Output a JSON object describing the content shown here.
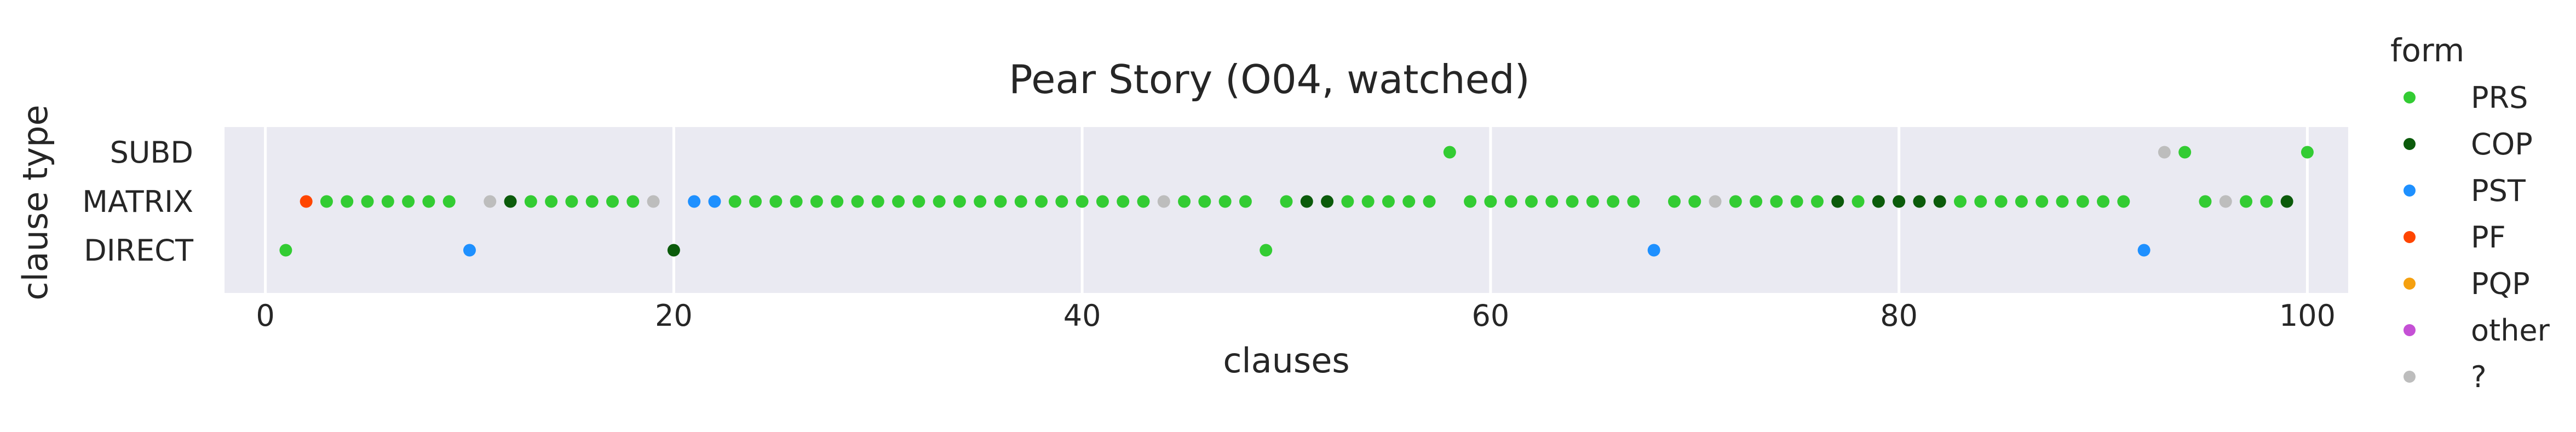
{
  "chart_data": {
    "type": "scatter",
    "title": "Pear Story (O04, watched)",
    "xlabel": "clauses",
    "ylabel": "clause type",
    "xlim": [
      -2,
      102
    ],
    "xticks": [
      0,
      20,
      40,
      60,
      80,
      100
    ],
    "xtick_labels": [
      "0",
      "20",
      "40",
      "60",
      "80",
      "100"
    ],
    "categories": [
      "SUBD",
      "MATRIX",
      "DIRECT"
    ],
    "grid": true,
    "legend": {
      "title": "form",
      "placement": "right",
      "entries": [
        {
          "label": "PRS",
          "color": "#33cc33"
        },
        {
          "label": "COP",
          "color": "#0b5b0b"
        },
        {
          "label": "PST",
          "color": "#1e90ff"
        },
        {
          "label": "PF",
          "color": "#ff4500"
        },
        {
          "label": "PQP",
          "color": "#f5a00f"
        },
        {
          "label": "other",
          "color": "#c550d5"
        },
        {
          "label": "?",
          "color": "#bdbdbd"
        }
      ]
    },
    "series": [
      {
        "name": "PRS",
        "points": [
          {
            "x": 1,
            "y": "DIRECT"
          },
          {
            "x": 3,
            "y": "MATRIX"
          },
          {
            "x": 4,
            "y": "MATRIX"
          },
          {
            "x": 5,
            "y": "MATRIX"
          },
          {
            "x": 6,
            "y": "MATRIX"
          },
          {
            "x": 7,
            "y": "MATRIX"
          },
          {
            "x": 8,
            "y": "MATRIX"
          },
          {
            "x": 9,
            "y": "MATRIX"
          },
          {
            "x": 13,
            "y": "MATRIX"
          },
          {
            "x": 14,
            "y": "MATRIX"
          },
          {
            "x": 15,
            "y": "MATRIX"
          },
          {
            "x": 16,
            "y": "MATRIX"
          },
          {
            "x": 17,
            "y": "MATRIX"
          },
          {
            "x": 18,
            "y": "MATRIX"
          },
          {
            "x": 23,
            "y": "MATRIX"
          },
          {
            "x": 24,
            "y": "MATRIX"
          },
          {
            "x": 25,
            "y": "MATRIX"
          },
          {
            "x": 26,
            "y": "MATRIX"
          },
          {
            "x": 27,
            "y": "MATRIX"
          },
          {
            "x": 28,
            "y": "MATRIX"
          },
          {
            "x": 29,
            "y": "MATRIX"
          },
          {
            "x": 30,
            "y": "MATRIX"
          },
          {
            "x": 31,
            "y": "MATRIX"
          },
          {
            "x": 32,
            "y": "MATRIX"
          },
          {
            "x": 33,
            "y": "MATRIX"
          },
          {
            "x": 34,
            "y": "MATRIX"
          },
          {
            "x": 35,
            "y": "MATRIX"
          },
          {
            "x": 36,
            "y": "MATRIX"
          },
          {
            "x": 37,
            "y": "MATRIX"
          },
          {
            "x": 38,
            "y": "MATRIX"
          },
          {
            "x": 39,
            "y": "MATRIX"
          },
          {
            "x": 40,
            "y": "MATRIX"
          },
          {
            "x": 41,
            "y": "MATRIX"
          },
          {
            "x": 42,
            "y": "MATRIX"
          },
          {
            "x": 43,
            "y": "MATRIX"
          },
          {
            "x": 45,
            "y": "MATRIX"
          },
          {
            "x": 46,
            "y": "MATRIX"
          },
          {
            "x": 47,
            "y": "MATRIX"
          },
          {
            "x": 48,
            "y": "MATRIX"
          },
          {
            "x": 49,
            "y": "DIRECT"
          },
          {
            "x": 50,
            "y": "MATRIX"
          },
          {
            "x": 53,
            "y": "MATRIX"
          },
          {
            "x": 54,
            "y": "MATRIX"
          },
          {
            "x": 55,
            "y": "MATRIX"
          },
          {
            "x": 56,
            "y": "MATRIX"
          },
          {
            "x": 57,
            "y": "MATRIX"
          },
          {
            "x": 58,
            "y": "SUBD"
          },
          {
            "x": 59,
            "y": "MATRIX"
          },
          {
            "x": 60,
            "y": "MATRIX"
          },
          {
            "x": 61,
            "y": "MATRIX"
          },
          {
            "x": 62,
            "y": "MATRIX"
          },
          {
            "x": 63,
            "y": "MATRIX"
          },
          {
            "x": 64,
            "y": "MATRIX"
          },
          {
            "x": 65,
            "y": "MATRIX"
          },
          {
            "x": 66,
            "y": "MATRIX"
          },
          {
            "x": 67,
            "y": "MATRIX"
          },
          {
            "x": 69,
            "y": "MATRIX"
          },
          {
            "x": 70,
            "y": "MATRIX"
          },
          {
            "x": 72,
            "y": "MATRIX"
          },
          {
            "x": 73,
            "y": "MATRIX"
          },
          {
            "x": 74,
            "y": "MATRIX"
          },
          {
            "x": 75,
            "y": "MATRIX"
          },
          {
            "x": 76,
            "y": "MATRIX"
          },
          {
            "x": 78,
            "y": "MATRIX"
          },
          {
            "x": 83,
            "y": "MATRIX"
          },
          {
            "x": 84,
            "y": "MATRIX"
          },
          {
            "x": 85,
            "y": "MATRIX"
          },
          {
            "x": 86,
            "y": "MATRIX"
          },
          {
            "x": 87,
            "y": "MATRIX"
          },
          {
            "x": 88,
            "y": "MATRIX"
          },
          {
            "x": 89,
            "y": "MATRIX"
          },
          {
            "x": 90,
            "y": "MATRIX"
          },
          {
            "x": 91,
            "y": "MATRIX"
          },
          {
            "x": 94,
            "y": "SUBD"
          },
          {
            "x": 95,
            "y": "MATRIX"
          },
          {
            "x": 97,
            "y": "MATRIX"
          },
          {
            "x": 98,
            "y": "MATRIX"
          },
          {
            "x": 100,
            "y": "SUBD"
          }
        ]
      },
      {
        "name": "COP",
        "points": [
          {
            "x": 12,
            "y": "MATRIX"
          },
          {
            "x": 20,
            "y": "DIRECT"
          },
          {
            "x": 51,
            "y": "MATRIX"
          },
          {
            "x": 52,
            "y": "MATRIX"
          },
          {
            "x": 77,
            "y": "MATRIX"
          },
          {
            "x": 79,
            "y": "MATRIX"
          },
          {
            "x": 80,
            "y": "MATRIX"
          },
          {
            "x": 81,
            "y": "MATRIX"
          },
          {
            "x": 82,
            "y": "MATRIX"
          },
          {
            "x": 99,
            "y": "MATRIX"
          }
        ]
      },
      {
        "name": "PST",
        "points": [
          {
            "x": 10,
            "y": "DIRECT"
          },
          {
            "x": 21,
            "y": "MATRIX"
          },
          {
            "x": 22,
            "y": "MATRIX"
          },
          {
            "x": 68,
            "y": "DIRECT"
          },
          {
            "x": 92,
            "y": "DIRECT"
          }
        ]
      },
      {
        "name": "PF",
        "points": [
          {
            "x": 2,
            "y": "MATRIX"
          }
        ]
      },
      {
        "name": "PQP",
        "points": []
      },
      {
        "name": "other",
        "points": []
      },
      {
        "name": "?",
        "points": [
          {
            "x": 11,
            "y": "MATRIX"
          },
          {
            "x": 19,
            "y": "MATRIX"
          },
          {
            "x": 44,
            "y": "MATRIX"
          },
          {
            "x": 71,
            "y": "MATRIX"
          },
          {
            "x": 93,
            "y": "SUBD"
          },
          {
            "x": 96,
            "y": "MATRIX"
          }
        ]
      }
    ]
  }
}
